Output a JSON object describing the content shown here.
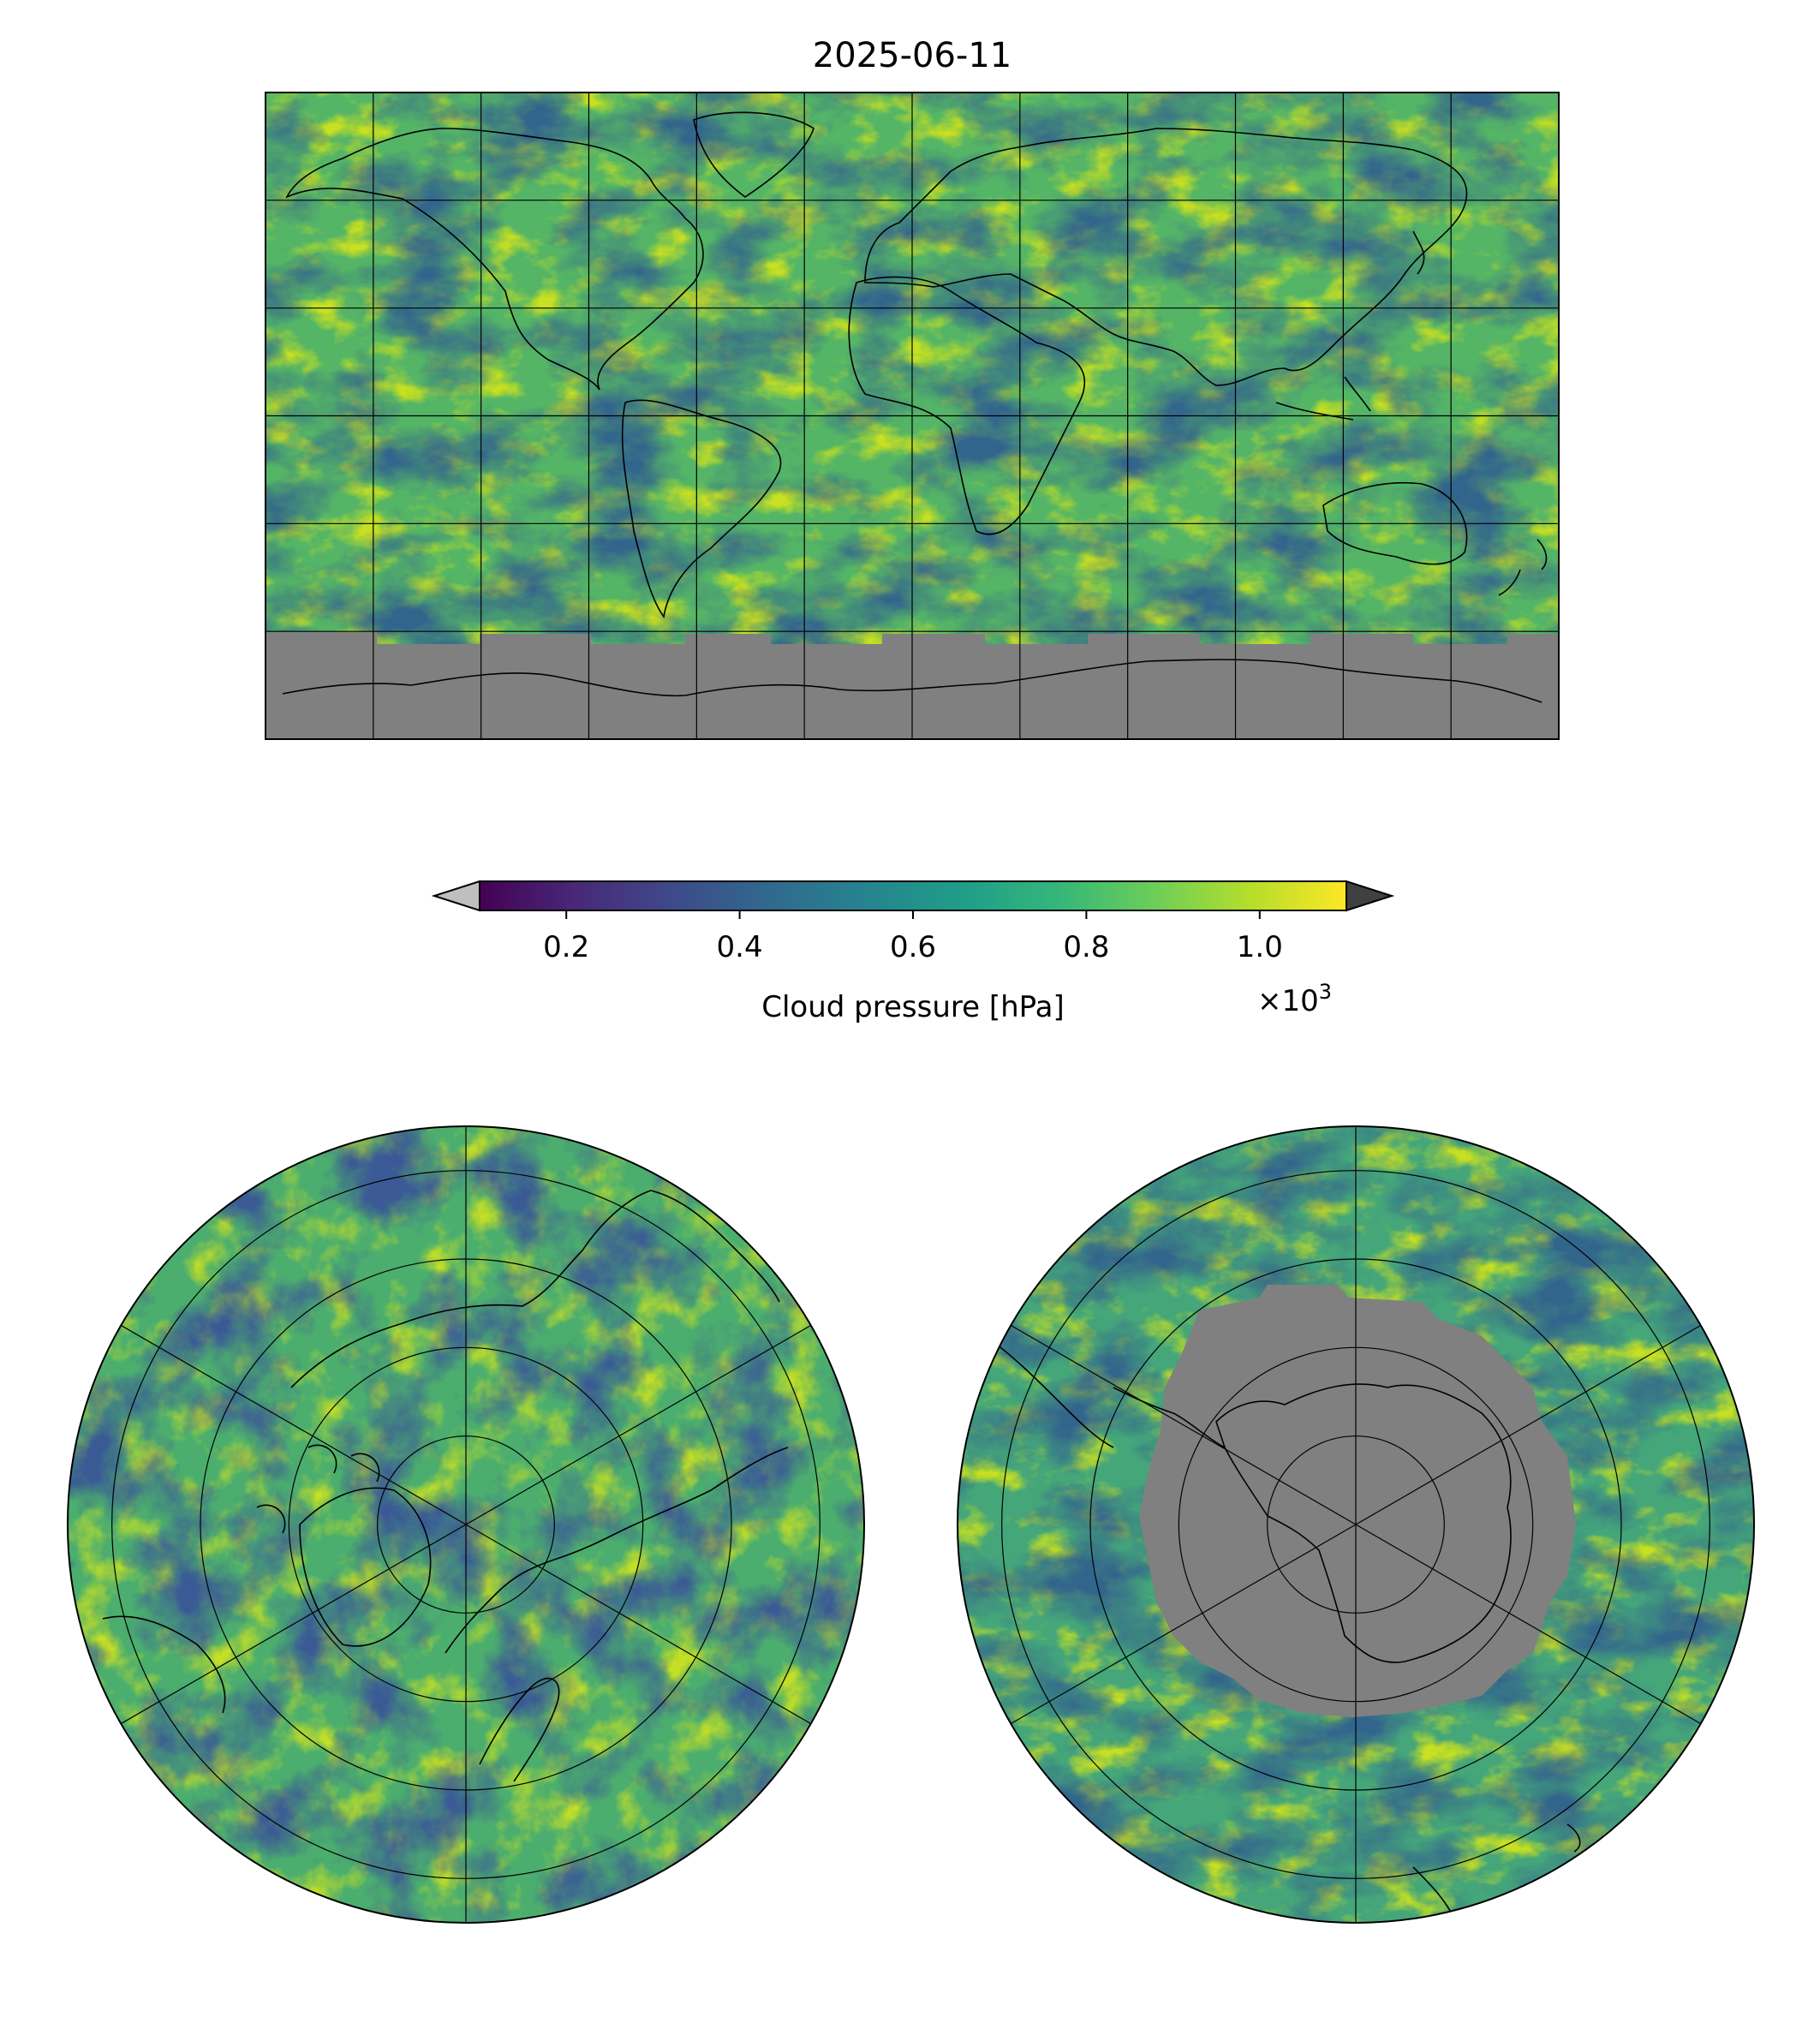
{
  "figure": {
    "title": "2025-06-11",
    "date": "2025-06-11"
  },
  "chart_data": [
    {
      "type": "heatmap",
      "panel": "global",
      "projection": "plate-carree",
      "variable": "Cloud pressure",
      "units": "hPa",
      "lon_range": [
        -180,
        180
      ],
      "lat_range": [
        -90,
        90
      ],
      "gridlines_lon": [
        -150,
        -120,
        -90,
        -60,
        -30,
        0,
        30,
        60,
        90,
        120,
        150
      ],
      "gridlines_lat": [
        -60,
        -30,
        0,
        30,
        60
      ],
      "missing_region": "Antarctica (south of ~60°S) shown in grey"
    },
    {
      "type": "heatmap",
      "panel": "north-polar",
      "projection": "north-polar-stereographic",
      "variable": "Cloud pressure",
      "units": "hPa",
      "lat_circles": [
        80,
        70,
        60,
        50
      ],
      "meridians": [
        0,
        60,
        120,
        180,
        240,
        300
      ]
    },
    {
      "type": "heatmap",
      "panel": "south-polar",
      "projection": "south-polar-stereographic",
      "variable": "Cloud pressure",
      "units": "hPa",
      "lat_circles": [
        -80,
        -70,
        -60,
        -50
      ],
      "meridians": [
        0,
        60,
        120,
        180,
        240,
        300
      ],
      "missing_region": "Antarctic interior shown in grey"
    }
  ],
  "colorbar": {
    "label": "Cloud pressure [hPa]",
    "multiplier_base": "×10",
    "multiplier_exp": "3",
    "colormap": "viridis",
    "range": [
      0.1,
      1.1
    ],
    "ticks": [
      {
        "value": 0.2,
        "label": "0.2"
      },
      {
        "value": 0.4,
        "label": "0.4"
      },
      {
        "value": 0.6,
        "label": "0.6"
      },
      {
        "value": 0.8,
        "label": "0.8"
      },
      {
        "value": 1.0,
        "label": "1.0"
      }
    ],
    "extend_under_color": "#bfbfbf",
    "extend_over_color": "#404040"
  },
  "colors": {
    "viridis": [
      "#440154",
      "#482878",
      "#3e4989",
      "#31688e",
      "#26828e",
      "#1f9e89",
      "#35b779",
      "#6ece58",
      "#b5de2b",
      "#fde725"
    ],
    "missing": "#808080"
  }
}
